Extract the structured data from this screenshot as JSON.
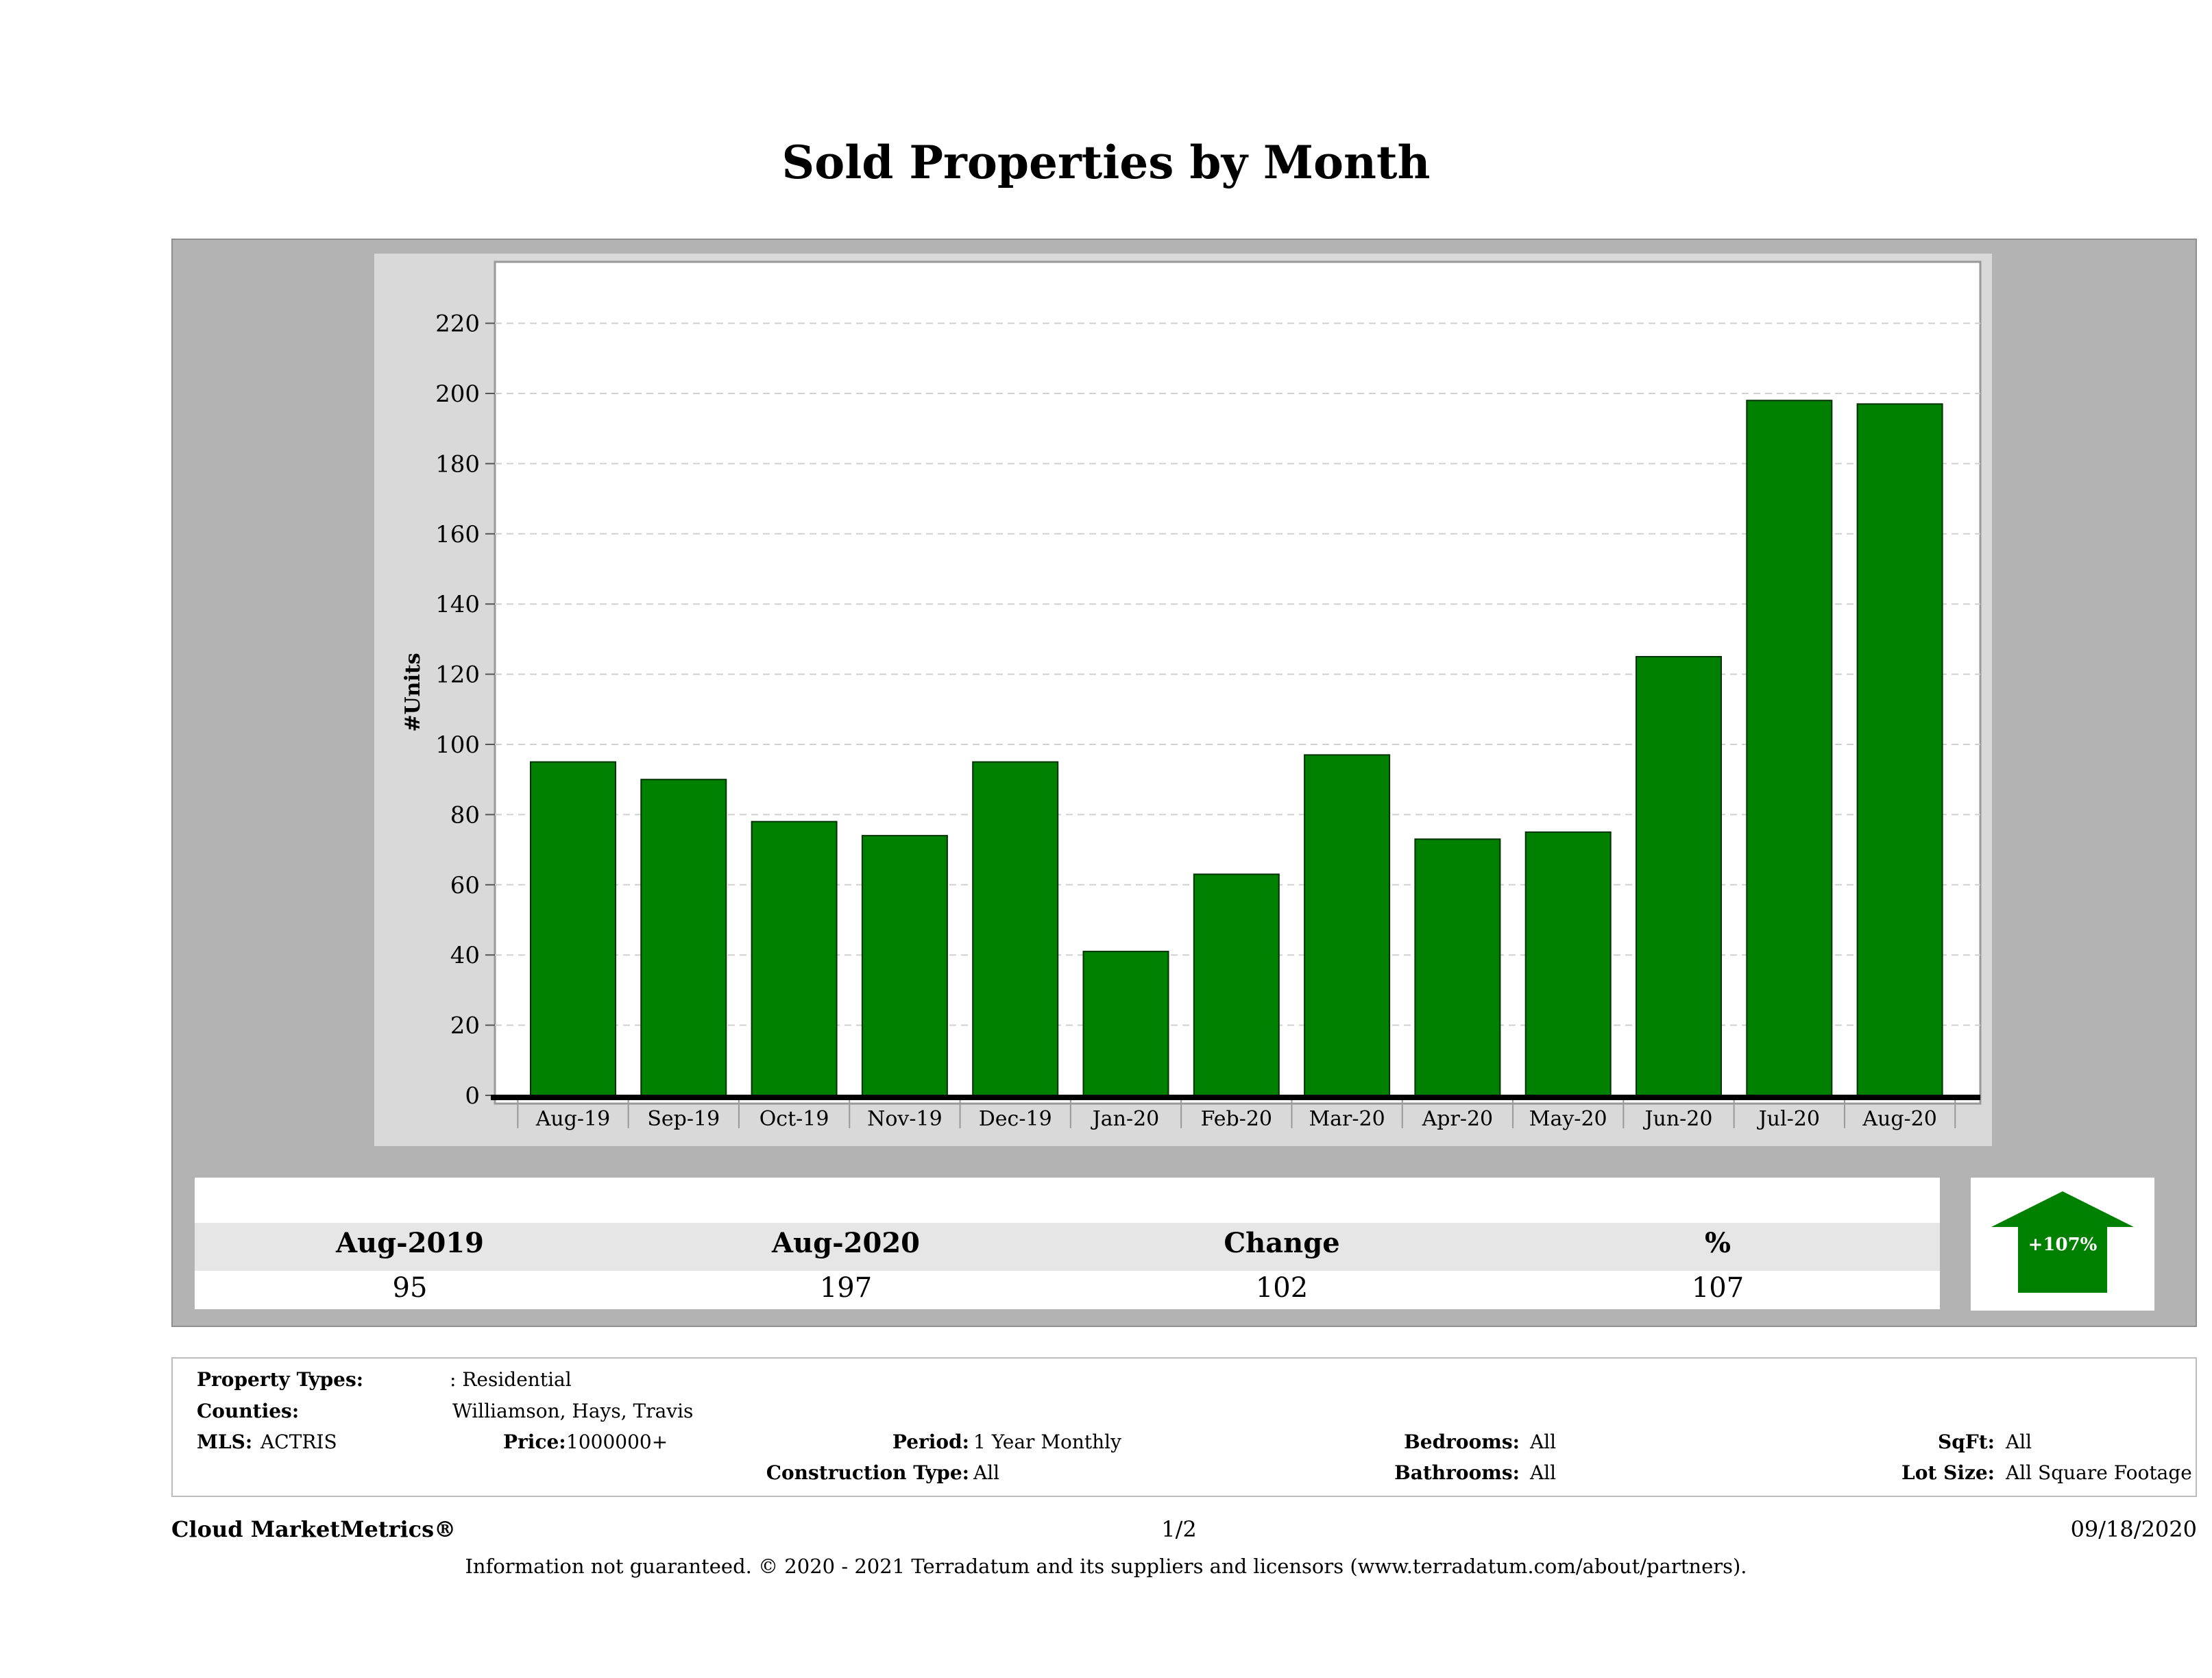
{
  "page_title": "Sold Properties by Month",
  "colors": {
    "bar": "#008000",
    "panel": "#b3b3b3",
    "arrow": "#008000"
  },
  "chart_data": {
    "type": "bar",
    "title": "Sold Properties by Month",
    "xlabel": "",
    "ylabel": "#Units",
    "categories": [
      "Aug-19",
      "Sep-19",
      "Oct-19",
      "Nov-19",
      "Dec-19",
      "Jan-20",
      "Feb-20",
      "Mar-20",
      "Apr-20",
      "May-20",
      "Jun-20",
      "Jul-20",
      "Aug-20"
    ],
    "values": [
      95,
      90,
      78,
      74,
      95,
      41,
      63,
      97,
      73,
      75,
      125,
      198,
      197
    ],
    "ylim": [
      0,
      230
    ],
    "yticks": [
      0,
      20,
      40,
      60,
      80,
      100,
      120,
      140,
      160,
      180,
      200,
      220
    ],
    "grid": true
  },
  "summary": {
    "headers": [
      "Aug-2019",
      "Aug-2020",
      "Change",
      "%"
    ],
    "values": [
      "95",
      "197",
      "102",
      "107"
    ],
    "badge": "+107%"
  },
  "meta": {
    "property_types_label": "Property Types:",
    "property_types_value": ": Residential",
    "counties_label": "Counties:",
    "counties_value": "Williamson, Hays, Travis",
    "mls_label": "MLS:",
    "mls_value": "ACTRIS",
    "price_label": "Price:",
    "price_value": "1000000+",
    "period_label": "Period:",
    "period_value": "1 Year Monthly",
    "construction_label": "Construction Type:",
    "construction_value": "All",
    "bedrooms_label": "Bedrooms:",
    "bedrooms_value": "All",
    "bathrooms_label": "Bathrooms:",
    "bathrooms_value": "All",
    "sqft_label": "SqFt:",
    "sqft_value": "All",
    "lotsize_label": "Lot Size:",
    "lotsize_value": "All Square Footage"
  },
  "footer": {
    "brand": "Cloud MarketMetrics®",
    "page": "1/2",
    "date": "09/18/2020",
    "note": "Information not guaranteed. © 2020 - 2021 Terradatum and its suppliers and licensors (www.terradatum.com/about/partners)."
  }
}
